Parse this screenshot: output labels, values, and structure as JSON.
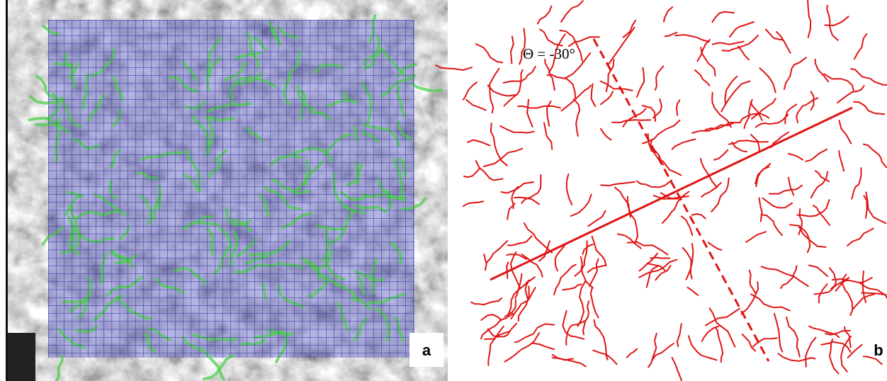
{
  "panels": [
    {
      "label": "a"
    },
    {
      "label": "b",
      "annotation": "Θ = -30°"
    }
  ]
}
